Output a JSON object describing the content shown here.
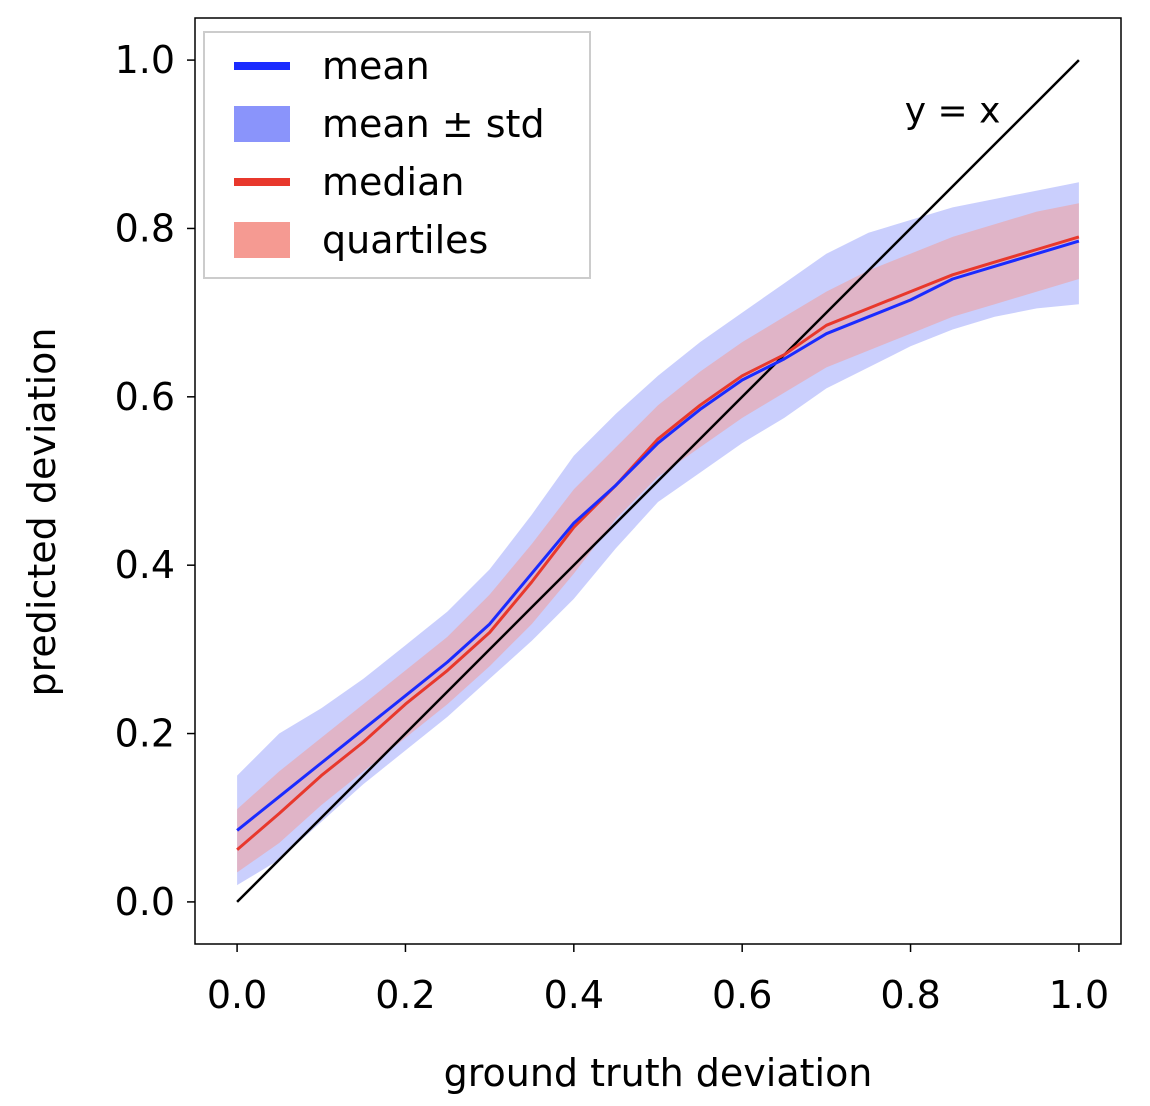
{
  "chart_data": {
    "type": "line",
    "title": "",
    "xlabel": "ground truth deviation",
    "ylabel": "predicted deviation",
    "xlim": [
      -0.05,
      1.05
    ],
    "ylim": [
      -0.05,
      1.05
    ],
    "xticks": [
      0.0,
      0.2,
      0.4,
      0.6,
      0.8,
      1.0
    ],
    "xtick_labels": [
      "0.0",
      "0.2",
      "0.4",
      "0.6",
      "0.8",
      "1.0"
    ],
    "yticks": [
      0.0,
      0.2,
      0.4,
      0.6,
      0.8,
      1.0
    ],
    "ytick_labels": [
      "0.0",
      "0.2",
      "0.4",
      "0.6",
      "0.8",
      "1.0"
    ],
    "grid": false,
    "legend_position": "upper-left",
    "legend": [
      {
        "label": "mean",
        "kind": "line",
        "color": "#1a2bff"
      },
      {
        "label": "mean ± std",
        "kind": "patch",
        "color": "#8a94fb"
      },
      {
        "label": "median",
        "kind": "line",
        "color": "#e8382c"
      },
      {
        "label": "quartiles",
        "kind": "patch",
        "color": "#f59a92"
      }
    ],
    "annotation": {
      "text": "y = x",
      "x": 0.85,
      "y": 0.94
    },
    "x": [
      0.0,
      0.05,
      0.1,
      0.15,
      0.2,
      0.25,
      0.3,
      0.35,
      0.4,
      0.45,
      0.5,
      0.55,
      0.6,
      0.65,
      0.7,
      0.75,
      0.8,
      0.85,
      0.9,
      0.95,
      1.0
    ],
    "series": [
      {
        "name": "mean",
        "color": "#1a2bff",
        "values": [
          0.085,
          0.125,
          0.165,
          0.205,
          0.245,
          0.285,
          0.33,
          0.39,
          0.45,
          0.495,
          0.545,
          0.585,
          0.62,
          0.645,
          0.675,
          0.695,
          0.715,
          0.74,
          0.755,
          0.77,
          0.785
        ]
      },
      {
        "name": "median",
        "color": "#e8382c",
        "values": [
          0.062,
          0.105,
          0.15,
          0.19,
          0.235,
          0.275,
          0.32,
          0.38,
          0.445,
          0.495,
          0.55,
          0.59,
          0.625,
          0.65,
          0.685,
          0.705,
          0.725,
          0.745,
          0.76,
          0.775,
          0.79
        ]
      },
      {
        "name": "mean + std",
        "role": "band_upper",
        "values": [
          0.15,
          0.2,
          0.23,
          0.265,
          0.305,
          0.345,
          0.395,
          0.46,
          0.53,
          0.58,
          0.625,
          0.665,
          0.7,
          0.735,
          0.77,
          0.795,
          0.81,
          0.825,
          0.835,
          0.845,
          0.855
        ]
      },
      {
        "name": "mean - std",
        "role": "band_lower",
        "values": [
          0.02,
          0.05,
          0.095,
          0.14,
          0.18,
          0.22,
          0.265,
          0.31,
          0.36,
          0.42,
          0.475,
          0.51,
          0.545,
          0.575,
          0.61,
          0.635,
          0.66,
          0.68,
          0.695,
          0.705,
          0.71
        ]
      },
      {
        "name": "upper quartile",
        "role": "band_upper",
        "values": [
          0.11,
          0.155,
          0.195,
          0.235,
          0.275,
          0.315,
          0.365,
          0.425,
          0.49,
          0.54,
          0.59,
          0.63,
          0.665,
          0.695,
          0.725,
          0.75,
          0.77,
          0.79,
          0.805,
          0.82,
          0.83
        ]
      },
      {
        "name": "lower quartile",
        "role": "band_lower",
        "values": [
          0.035,
          0.07,
          0.115,
          0.155,
          0.195,
          0.235,
          0.28,
          0.33,
          0.39,
          0.455,
          0.505,
          0.54,
          0.575,
          0.605,
          0.635,
          0.655,
          0.675,
          0.695,
          0.71,
          0.725,
          0.74
        ]
      },
      {
        "name": "y = x",
        "color": "#000000",
        "values": [
          0.0,
          0.05,
          0.1,
          0.15,
          0.2,
          0.25,
          0.3,
          0.35,
          0.4,
          0.45,
          0.5,
          0.55,
          0.6,
          0.65,
          0.7,
          0.75,
          0.8,
          0.85,
          0.9,
          0.95,
          1.0
        ]
      }
    ],
    "bands": [
      {
        "name": "mean ± std",
        "color": "#8a94fb",
        "opacity": 0.45
      },
      {
        "name": "quartiles",
        "color": "#f59a92",
        "opacity": 0.5
      }
    ]
  }
}
